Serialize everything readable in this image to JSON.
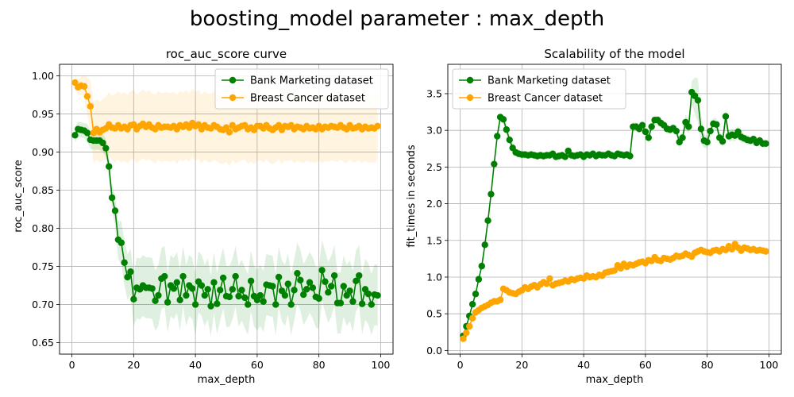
{
  "figure_title": "boosting_model parameter : max_depth",
  "chart_data": [
    {
      "type": "line",
      "title": "roc_auc_score curve",
      "xlabel": "max_depth",
      "ylabel": "roc_auc_score",
      "xlim": [
        -4,
        104
      ],
      "ylim": [
        0.635,
        1.015
      ],
      "xticks": [
        0,
        20,
        40,
        60,
        80,
        100
      ],
      "yticks": [
        0.65,
        0.7,
        0.75,
        0.8,
        0.85,
        0.9,
        0.95,
        1.0
      ],
      "ytick_decimals": 2,
      "grid": true,
      "legend": "top-right",
      "x": [
        1,
        2,
        3,
        4,
        5,
        6,
        7,
        8,
        9,
        10,
        11,
        12,
        13,
        14,
        15,
        16,
        17,
        18,
        19,
        20,
        21,
        22,
        23,
        24,
        25,
        26,
        27,
        28,
        29,
        30,
        31,
        32,
        33,
        34,
        35,
        36,
        37,
        38,
        39,
        40,
        41,
        42,
        43,
        44,
        45,
        46,
        47,
        48,
        49,
        50,
        51,
        52,
        53,
        54,
        55,
        56,
        57,
        58,
        59,
        60,
        61,
        62,
        63,
        64,
        65,
        66,
        67,
        68,
        69,
        70,
        71,
        72,
        73,
        74,
        75,
        76,
        77,
        78,
        79,
        80,
        81,
        82,
        83,
        84,
        85,
        86,
        87,
        88,
        89,
        90,
        91,
        92,
        93,
        94,
        95,
        96,
        97,
        98,
        99
      ],
      "series": [
        {
          "name": "Bank Marketing dataset",
          "color": "#008000",
          "values": [
            0.922,
            0.93,
            0.929,
            0.928,
            0.925,
            0.916,
            0.915,
            0.915,
            0.915,
            0.912,
            0.905,
            0.881,
            0.84,
            0.823,
            0.785,
            0.781,
            0.755,
            0.736,
            0.743,
            0.707,
            0.722,
            0.72,
            0.725,
            0.722,
            0.722,
            0.721,
            0.705,
            0.712,
            0.734,
            0.737,
            0.703,
            0.725,
            0.721,
            0.729,
            0.706,
            0.737,
            0.712,
            0.725,
            0.721,
            0.7,
            0.73,
            0.725,
            0.712,
            0.72,
            0.698,
            0.729,
            0.701,
            0.719,
            0.735,
            0.711,
            0.71,
            0.72,
            0.737,
            0.711,
            0.719,
            0.709,
            0.7,
            0.731,
            0.711,
            0.706,
            0.712,
            0.704,
            0.726,
            0.725,
            0.724,
            0.7,
            0.736,
            0.718,
            0.712,
            0.727,
            0.7,
            0.719,
            0.741,
            0.732,
            0.713,
            0.72,
            0.729,
            0.722,
            0.71,
            0.708,
            0.745,
            0.73,
            0.716,
            0.724,
            0.738,
            0.702,
            0.702,
            0.724,
            0.712,
            0.718,
            0.704,
            0.731,
            0.738,
            0.701,
            0.72,
            0.714,
            0.7,
            0.713,
            0.712
          ],
          "band": [
            0.01,
            0.01,
            0.01,
            0.01,
            0.012,
            0.012,
            0.012,
            0.012,
            0.012,
            0.012,
            0.012,
            0.015,
            0.018,
            0.02,
            0.025,
            0.028,
            0.03,
            0.03,
            0.03,
            0.035,
            0.04,
            0.04,
            0.04,
            0.04,
            0.04,
            0.04,
            0.04,
            0.04,
            0.04,
            0.04,
            0.04,
            0.04,
            0.04,
            0.04,
            0.04,
            0.04,
            0.04,
            0.04,
            0.04,
            0.04,
            0.04,
            0.04,
            0.04,
            0.04,
            0.04,
            0.04,
            0.04,
            0.04,
            0.04,
            0.04,
            0.04,
            0.04,
            0.04,
            0.04,
            0.04,
            0.04,
            0.04,
            0.04,
            0.04,
            0.04,
            0.04,
            0.04,
            0.04,
            0.04,
            0.04,
            0.04,
            0.04,
            0.04,
            0.04,
            0.04,
            0.04,
            0.04,
            0.04,
            0.04,
            0.04,
            0.04,
            0.04,
            0.04,
            0.04,
            0.04,
            0.04,
            0.04,
            0.04,
            0.04,
            0.04,
            0.04,
            0.04,
            0.04,
            0.04,
            0.04,
            0.04,
            0.04,
            0.04,
            0.04,
            0.04,
            0.04,
            0.04,
            0.04,
            0.04
          ]
        },
        {
          "name": "Breast Cancer dataset",
          "color": "#ffa500",
          "values": [
            0.991,
            0.985,
            0.987,
            0.986,
            0.973,
            0.96,
            0.925,
            0.93,
            0.926,
            0.929,
            0.931,
            0.936,
            0.932,
            0.931,
            0.935,
            0.931,
            0.933,
            0.93,
            0.935,
            0.936,
            0.93,
            0.934,
            0.937,
            0.933,
            0.936,
            0.932,
            0.93,
            0.935,
            0.932,
            0.933,
            0.933,
            0.932,
            0.934,
            0.93,
            0.935,
            0.933,
            0.936,
            0.932,
            0.938,
            0.934,
            0.936,
            0.93,
            0.935,
            0.932,
            0.931,
            0.935,
            0.933,
            0.93,
            0.929,
            0.932,
            0.926,
            0.935,
            0.93,
            0.932,
            0.934,
            0.935,
            0.93,
            0.932,
            0.929,
            0.934,
            0.934,
            0.931,
            0.935,
            0.931,
            0.929,
            0.932,
            0.935,
            0.929,
            0.934,
            0.933,
            0.935,
            0.93,
            0.933,
            0.932,
            0.93,
            0.934,
            0.931,
            0.932,
            0.93,
            0.934,
            0.93,
            0.933,
            0.932,
            0.934,
            0.933,
            0.932,
            0.935,
            0.932,
            0.93,
            0.935,
            0.931,
            0.932,
            0.934,
            0.93,
            0.933,
            0.931,
            0.932,
            0.931,
            0.934
          ],
          "band": [
            0.01,
            0.01,
            0.012,
            0.015,
            0.025,
            0.035,
            0.04,
            0.04,
            0.04,
            0.04,
            0.042,
            0.042,
            0.042,
            0.045,
            0.045,
            0.045,
            0.045,
            0.045,
            0.045,
            0.045,
            0.045,
            0.045,
            0.045,
            0.045,
            0.045,
            0.045,
            0.045,
            0.045,
            0.045,
            0.045,
            0.045,
            0.045,
            0.045,
            0.045,
            0.045,
            0.045,
            0.045,
            0.045,
            0.045,
            0.045,
            0.045,
            0.045,
            0.045,
            0.045,
            0.045,
            0.045,
            0.045,
            0.045,
            0.045,
            0.045,
            0.045,
            0.045,
            0.045,
            0.045,
            0.045,
            0.045,
            0.045,
            0.045,
            0.045,
            0.045,
            0.045,
            0.045,
            0.045,
            0.045,
            0.045,
            0.045,
            0.045,
            0.045,
            0.045,
            0.045,
            0.045,
            0.045,
            0.045,
            0.045,
            0.045,
            0.045,
            0.045,
            0.045,
            0.045,
            0.045,
            0.045,
            0.045,
            0.045,
            0.045,
            0.045,
            0.045,
            0.045,
            0.045,
            0.045,
            0.045,
            0.045,
            0.045,
            0.045,
            0.045,
            0.045,
            0.045,
            0.045,
            0.045,
            0.045
          ]
        }
      ]
    },
    {
      "type": "line",
      "title": "Scalability of the model",
      "xlabel": "max_depth",
      "ylabel": "fit_times in seconds",
      "xlim": [
        -4,
        104
      ],
      "ylim": [
        -0.05,
        3.9
      ],
      "xticks": [
        0,
        20,
        40,
        60,
        80,
        100
      ],
      "yticks": [
        0.0,
        0.5,
        1.0,
        1.5,
        2.0,
        2.5,
        3.0,
        3.5
      ],
      "ytick_decimals": 1,
      "grid": true,
      "legend": "top-left",
      "x": [
        1,
        2,
        3,
        4,
        5,
        6,
        7,
        8,
        9,
        10,
        11,
        12,
        13,
        14,
        15,
        16,
        17,
        18,
        19,
        20,
        21,
        22,
        23,
        24,
        25,
        26,
        27,
        28,
        29,
        30,
        31,
        32,
        33,
        34,
        35,
        36,
        37,
        38,
        39,
        40,
        41,
        42,
        43,
        44,
        45,
        46,
        47,
        48,
        49,
        50,
        51,
        52,
        53,
        54,
        55,
        56,
        57,
        58,
        59,
        60,
        61,
        62,
        63,
        64,
        65,
        66,
        67,
        68,
        69,
        70,
        71,
        72,
        73,
        74,
        75,
        76,
        77,
        78,
        79,
        80,
        81,
        82,
        83,
        84,
        85,
        86,
        87,
        88,
        89,
        90,
        91,
        92,
        93,
        94,
        95,
        96,
        97,
        98,
        99
      ],
      "series": [
        {
          "name": "Bank Marketing dataset",
          "color": "#008000",
          "values": [
            0.2,
            0.33,
            0.47,
            0.63,
            0.77,
            0.97,
            1.15,
            1.44,
            1.77,
            2.13,
            2.54,
            2.92,
            3.18,
            3.15,
            3.01,
            2.87,
            2.76,
            2.7,
            2.68,
            2.67,
            2.67,
            2.66,
            2.67,
            2.66,
            2.65,
            2.66,
            2.65,
            2.66,
            2.66,
            2.68,
            2.64,
            2.65,
            2.66,
            2.64,
            2.72,
            2.66,
            2.65,
            2.66,
            2.67,
            2.64,
            2.67,
            2.66,
            2.68,
            2.65,
            2.67,
            2.66,
            2.66,
            2.68,
            2.66,
            2.65,
            2.68,
            2.67,
            2.66,
            2.67,
            2.65,
            3.05,
            3.05,
            3.02,
            3.07,
            2.98,
            2.9,
            3.05,
            3.14,
            3.14,
            3.1,
            3.07,
            3.02,
            3.01,
            3.03,
            2.99,
            2.84,
            2.9,
            3.11,
            3.05,
            3.52,
            3.47,
            3.41,
            3.02,
            2.86,
            2.84,
            2.99,
            3.09,
            3.08,
            2.9,
            2.85,
            3.19,
            2.92,
            2.94,
            2.93,
            2.98,
            2.91,
            2.89,
            2.87,
            2.86,
            2.88,
            2.83,
            2.86,
            2.82,
            2.82
          ],
          "band": [
            0.02,
            0.02,
            0.02,
            0.03,
            0.03,
            0.03,
            0.04,
            0.04,
            0.05,
            0.05,
            0.05,
            0.06,
            0.06,
            0.06,
            0.06,
            0.06,
            0.06,
            0.05,
            0.05,
            0.05,
            0.05,
            0.05,
            0.05,
            0.05,
            0.05,
            0.05,
            0.05,
            0.05,
            0.05,
            0.05,
            0.05,
            0.05,
            0.05,
            0.05,
            0.05,
            0.05,
            0.05,
            0.05,
            0.05,
            0.05,
            0.05,
            0.05,
            0.05,
            0.05,
            0.05,
            0.05,
            0.05,
            0.05,
            0.05,
            0.05,
            0.05,
            0.05,
            0.05,
            0.05,
            0.05,
            0.06,
            0.06,
            0.06,
            0.06,
            0.06,
            0.06,
            0.06,
            0.06,
            0.06,
            0.06,
            0.06,
            0.06,
            0.06,
            0.06,
            0.06,
            0.08,
            0.08,
            0.1,
            0.1,
            0.15,
            0.25,
            0.3,
            0.2,
            0.1,
            0.08,
            0.08,
            0.08,
            0.08,
            0.08,
            0.08,
            0.1,
            0.08,
            0.08,
            0.08,
            0.08,
            0.08,
            0.06,
            0.06,
            0.06,
            0.06,
            0.06,
            0.06,
            0.06,
            0.06
          ]
        },
        {
          "name": "Breast Cancer dataset",
          "color": "#ffa500",
          "values": [
            0.16,
            0.24,
            0.33,
            0.44,
            0.52,
            0.55,
            0.58,
            0.6,
            0.62,
            0.65,
            0.67,
            0.67,
            0.69,
            0.84,
            0.82,
            0.79,
            0.78,
            0.77,
            0.8,
            0.82,
            0.86,
            0.84,
            0.87,
            0.89,
            0.86,
            0.9,
            0.93,
            0.91,
            0.98,
            0.89,
            0.91,
            0.92,
            0.93,
            0.95,
            0.94,
            0.97,
            0.96,
            0.98,
            0.99,
            0.98,
            1.02,
            1.0,
            1.01,
            1.0,
            1.03,
            1.02,
            1.06,
            1.07,
            1.08,
            1.09,
            1.16,
            1.12,
            1.18,
            1.14,
            1.17,
            1.16,
            1.18,
            1.2,
            1.21,
            1.19,
            1.23,
            1.22,
            1.27,
            1.23,
            1.22,
            1.26,
            1.25,
            1.24,
            1.26,
            1.29,
            1.28,
            1.29,
            1.32,
            1.3,
            1.28,
            1.33,
            1.35,
            1.37,
            1.35,
            1.34,
            1.33,
            1.36,
            1.37,
            1.35,
            1.38,
            1.37,
            1.42,
            1.38,
            1.45,
            1.4,
            1.36,
            1.4,
            1.39,
            1.37,
            1.38,
            1.36,
            1.37,
            1.36,
            1.35
          ],
          "band": [
            0.01,
            0.01,
            0.01,
            0.02,
            0.02,
            0.02,
            0.02,
            0.02,
            0.02,
            0.02,
            0.02,
            0.02,
            0.02,
            0.02,
            0.02,
            0.02,
            0.02,
            0.02,
            0.02,
            0.02,
            0.02,
            0.02,
            0.02,
            0.02,
            0.02,
            0.02,
            0.02,
            0.02,
            0.02,
            0.02,
            0.02,
            0.02,
            0.02,
            0.02,
            0.02,
            0.02,
            0.02,
            0.02,
            0.02,
            0.02,
            0.02,
            0.02,
            0.02,
            0.02,
            0.02,
            0.02,
            0.02,
            0.02,
            0.02,
            0.02,
            0.02,
            0.02,
            0.02,
            0.02,
            0.02,
            0.02,
            0.02,
            0.02,
            0.02,
            0.02,
            0.02,
            0.02,
            0.02,
            0.02,
            0.02,
            0.02,
            0.02,
            0.02,
            0.02,
            0.02,
            0.02,
            0.02,
            0.02,
            0.02,
            0.02,
            0.02,
            0.02,
            0.02,
            0.02,
            0.02,
            0.02,
            0.02,
            0.02,
            0.02,
            0.02,
            0.02,
            0.02,
            0.02,
            0.02,
            0.02,
            0.02,
            0.02,
            0.02,
            0.02,
            0.02,
            0.02,
            0.02,
            0.02,
            0.02
          ]
        }
      ]
    }
  ]
}
